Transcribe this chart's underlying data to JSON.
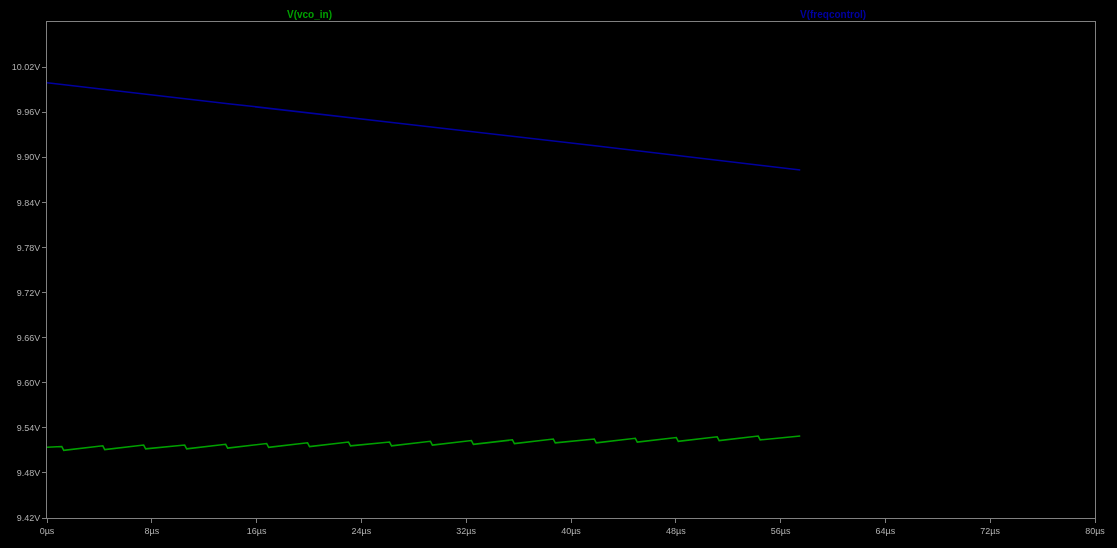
{
  "chart_data": {
    "type": "line",
    "legend": "top",
    "grid": false,
    "marker": "none",
    "line_style": "solid",
    "xlim": [
      0,
      80
    ],
    "xticks": [
      {
        "value": 0,
        "label": "0µs"
      },
      {
        "value": 8,
        "label": "8µs"
      },
      {
        "value": 16,
        "label": "16µs"
      },
      {
        "value": 24,
        "label": "24µs"
      },
      {
        "value": 32,
        "label": "32µs"
      },
      {
        "value": 40,
        "label": "40µs"
      },
      {
        "value": 48,
        "label": "48µs"
      },
      {
        "value": 56,
        "label": "56µs"
      },
      {
        "value": 64,
        "label": "64µs"
      },
      {
        "value": 72,
        "label": "72µs"
      },
      {
        "value": 80,
        "label": "80µs"
      }
    ],
    "ylim": [
      9.42,
      10.08
    ],
    "yticks": [
      {
        "value": 9.42,
        "label": "9.42V"
      },
      {
        "value": 9.48,
        "label": "9.48V"
      },
      {
        "value": 9.54,
        "label": "9.54V"
      },
      {
        "value": 9.6,
        "label": "9.60V"
      },
      {
        "value": 9.66,
        "label": "9.66V"
      },
      {
        "value": 9.72,
        "label": "9.72V"
      },
      {
        "value": 9.78,
        "label": "9.78V"
      },
      {
        "value": 9.84,
        "label": "9.84V"
      },
      {
        "value": 9.9,
        "label": "9.90V"
      },
      {
        "value": 9.96,
        "label": "9.96V"
      },
      {
        "value": 10.02,
        "label": "10.02V"
      }
    ],
    "series": [
      {
        "name": "V(vco_in)",
        "color": "#00a000",
        "x": [
          0,
          1.13,
          1.28,
          4.26,
          4.41,
          7.38,
          7.53,
          10.51,
          10.66,
          13.64,
          13.79,
          16.77,
          16.92,
          19.89,
          20.04,
          23.02,
          23.17,
          26.15,
          26.3,
          29.27,
          29.42,
          32.4,
          32.55,
          35.53,
          35.68,
          38.65,
          38.8,
          41.78,
          41.93,
          44.91,
          45.06,
          48.04,
          48.19,
          51.16,
          51.31,
          54.29,
          54.44,
          57.5
        ],
        "values": [
          9.514,
          9.515,
          9.51,
          9.516,
          9.511,
          9.517,
          9.512,
          9.517,
          9.512,
          9.518,
          9.513,
          9.519,
          9.514,
          9.52,
          9.515,
          9.521,
          9.516,
          9.521,
          9.516,
          9.522,
          9.517,
          9.523,
          9.518,
          9.524,
          9.519,
          9.525,
          9.52,
          9.525,
          9.52,
          9.526,
          9.521,
          9.527,
          9.522,
          9.528,
          9.523,
          9.529,
          9.524,
          9.529
        ]
      },
      {
        "name": "V(freqcontrol)",
        "color": "#0000a0",
        "x": [
          0,
          14,
          28,
          42,
          57.5
        ],
        "values": [
          9.999,
          9.971,
          9.943,
          9.915,
          9.883
        ]
      }
    ]
  }
}
